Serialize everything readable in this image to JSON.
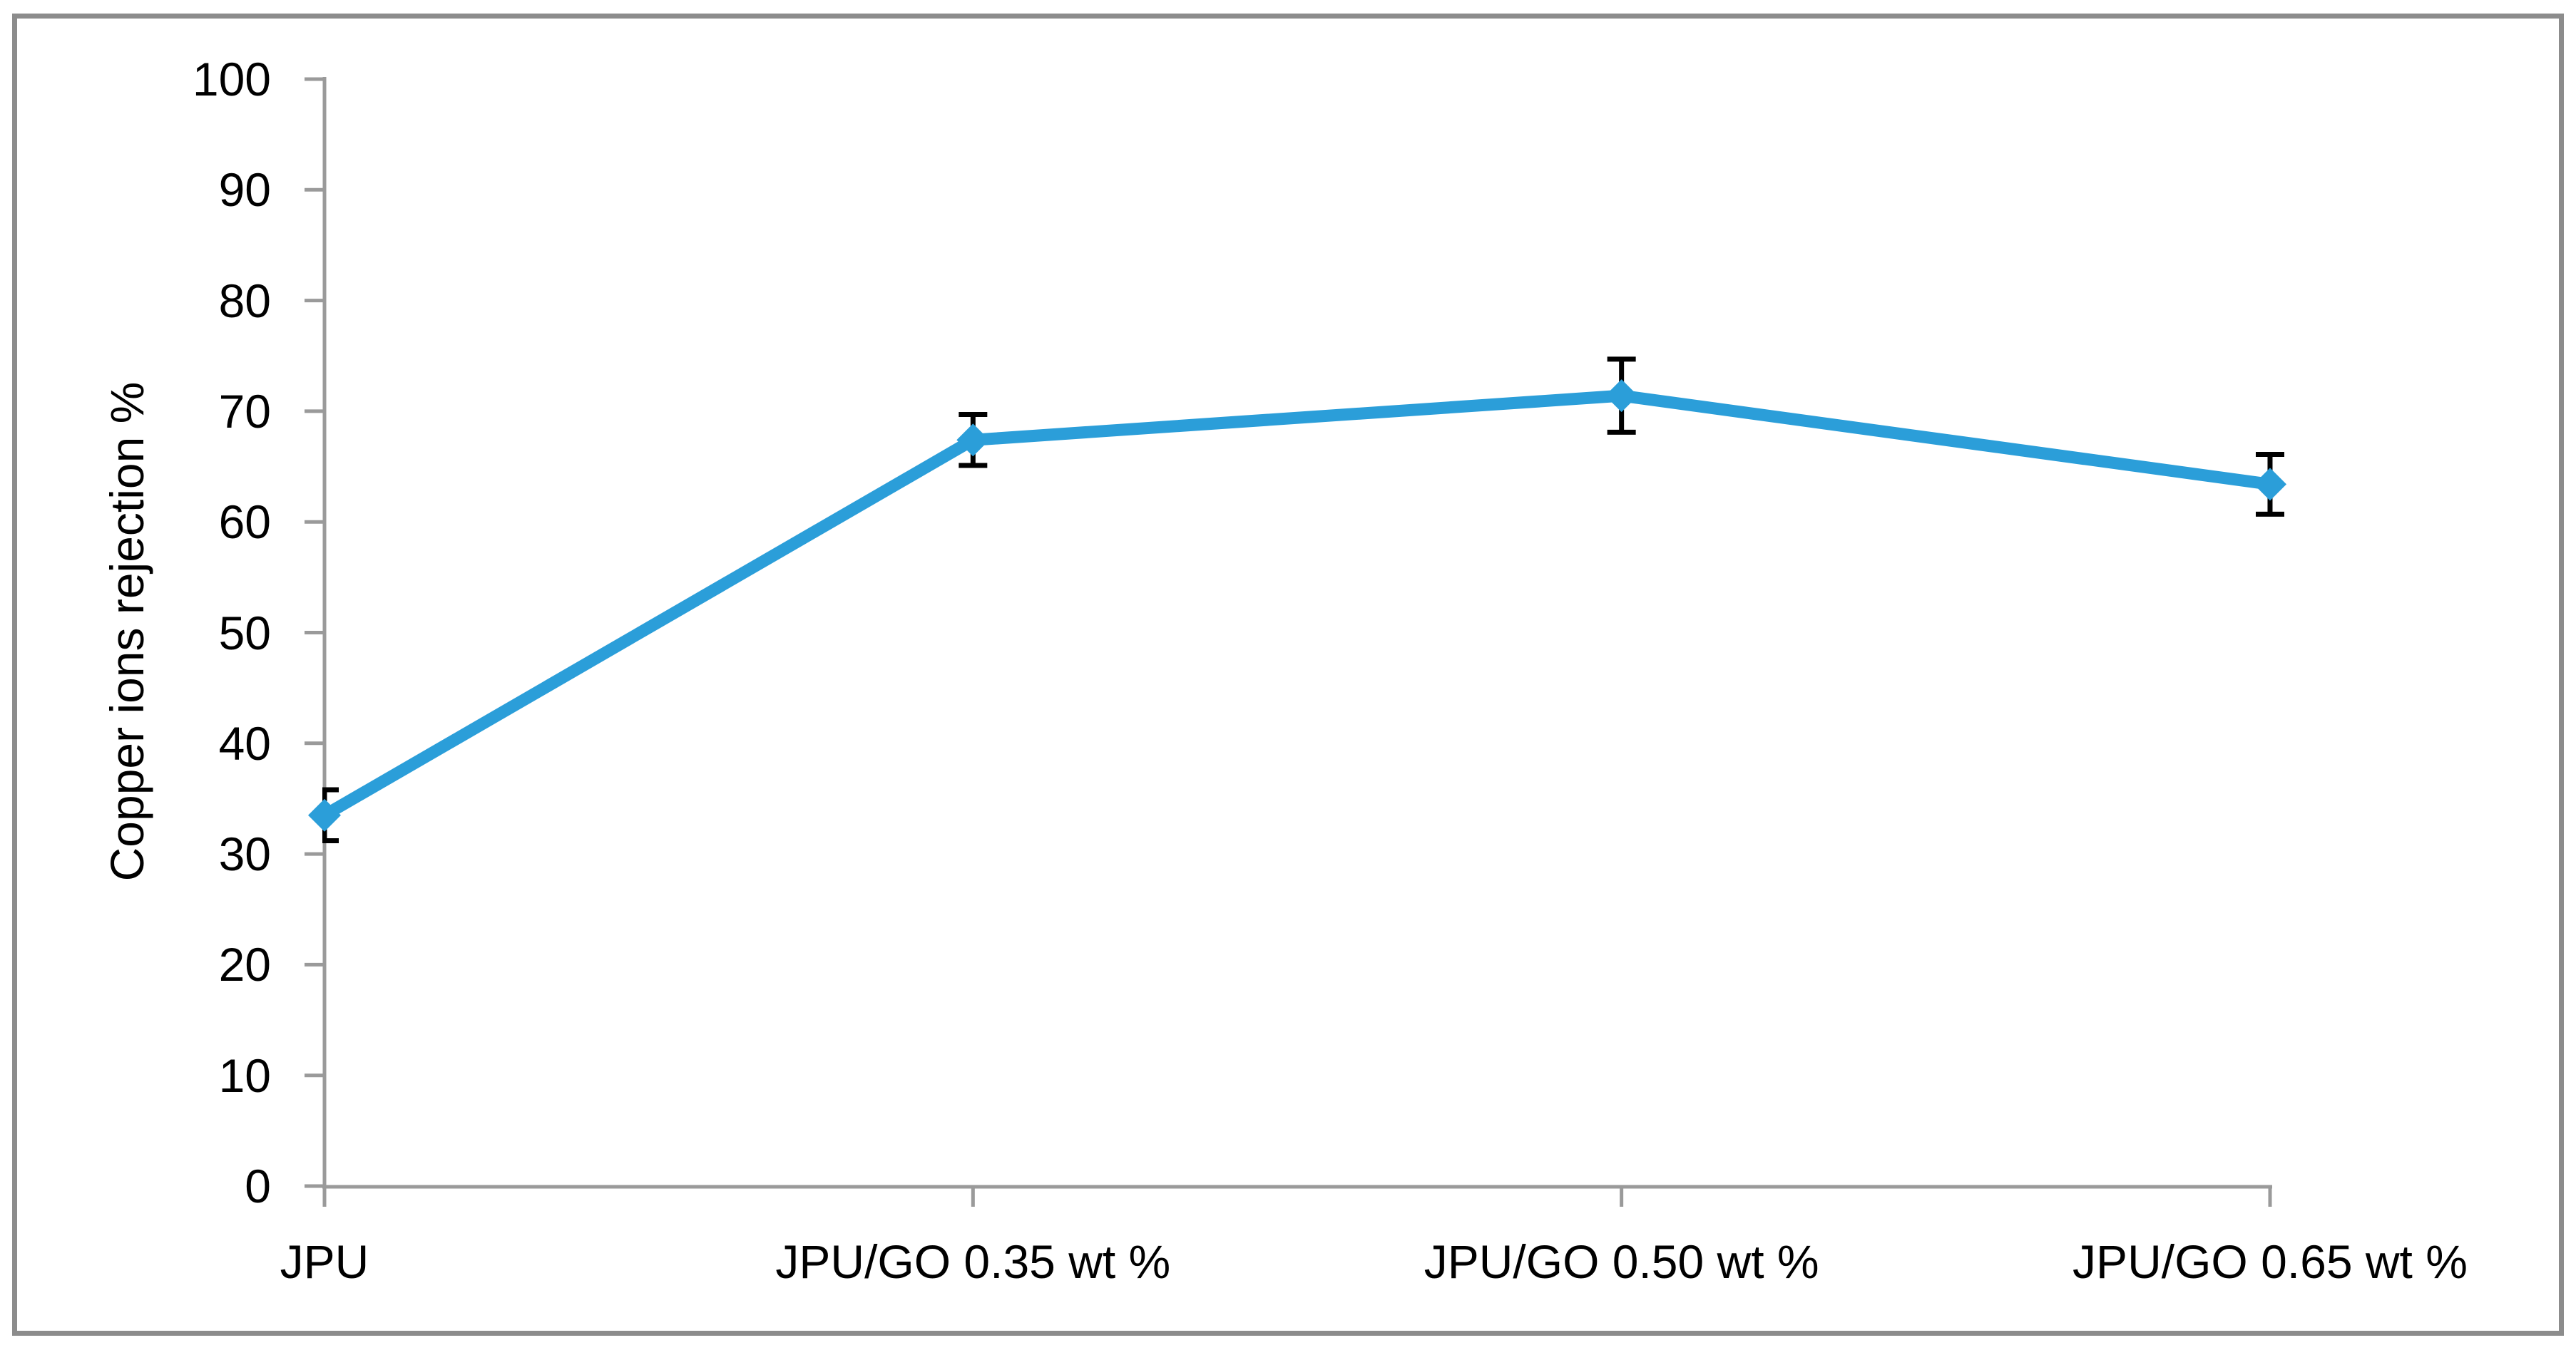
{
  "figure": {
    "background_color": "#ffffff",
    "border_color": "#8c8c8c"
  },
  "chart_data": {
    "type": "line",
    "title": "",
    "categories": [
      "JPU",
      "JPU/GO 0.35 wt %",
      "JPU/GO 0.50 wt %",
      "JPU/GO 0.65 wt %"
    ],
    "series": [
      {
        "name": "Copper ions rejection",
        "values": [
          33.5,
          67.4,
          71.4,
          63.4
        ],
        "error_bars_plus": [
          2.3,
          2.3,
          3.3,
          2.7
        ],
        "error_bars_minus": [
          2.3,
          2.3,
          3.3,
          2.7
        ],
        "color": "#2b9ed9",
        "marker": "diamond",
        "marker_color": "#2b9ed9"
      }
    ],
    "xlabel": "",
    "ylabel": "Copper ions rejection %",
    "ylim": [
      0,
      100
    ],
    "yticks": [
      0,
      10,
      20,
      30,
      40,
      50,
      60,
      70,
      80,
      90,
      100
    ],
    "grid": false,
    "legend": "none",
    "axis_color": "#9a9a9a",
    "error_bar_color": "#000000",
    "tick_label_color": "#000000"
  }
}
